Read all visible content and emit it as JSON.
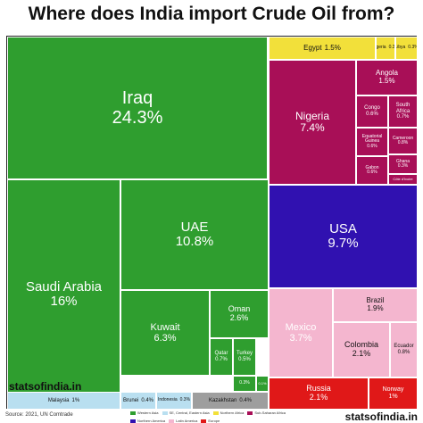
{
  "title": "Where does India import Crude Oil from?",
  "source": "Source: 2021, UN Comtrade",
  "brand": "statsofindia.in",
  "colors": {
    "Western Asia": "#2f9e2f",
    "Central Asia": "#9e9e9e",
    "Northern Africa": "#f2e03a",
    "Sub-Saharan Africa": "#a80f57",
    "Northern America": "#3011b0",
    "Latin America": "#f4b6cf",
    "Europe": "#e01818",
    "South-eastern Asia": "#b9dff0"
  },
  "legend": [
    {
      "name": "Western Asia",
      "color": "#2f9e2f"
    },
    {
      "name": "SE, Central, Eastern Asia",
      "color": "#b9dff0"
    },
    {
      "name": "Northern Africa",
      "color": "#f2e03a"
    },
    {
      "name": "Sub-Saharan Africa",
      "color": "#a80f57"
    },
    {
      "name": "Northern America",
      "color": "#3011b0"
    },
    {
      "name": "Latin America",
      "color": "#f4b6cf"
    },
    {
      "name": "Europe",
      "color": "#e01818"
    }
  ],
  "chart_data": {
    "type": "treemap",
    "title": "Where does India import Crude Oil from?",
    "unit": "%",
    "items": [
      {
        "name": "Iraq",
        "value": 24.3,
        "label": "24.3%",
        "region": "Western Asia"
      },
      {
        "name": "Saudi Arabia",
        "value": 16,
        "label": "16%",
        "region": "Western Asia"
      },
      {
        "name": "UAE",
        "value": 10.8,
        "label": "10.8%",
        "region": "Western Asia"
      },
      {
        "name": "Kuwait",
        "value": 6.3,
        "label": "6.3%",
        "region": "Western Asia"
      },
      {
        "name": "Oman",
        "value": 2.6,
        "label": "2.6%",
        "region": "Western Asia"
      },
      {
        "name": "Qatar",
        "value": 0.7,
        "label": "0.7%",
        "region": "Western Asia"
      },
      {
        "name": "Turkey",
        "value": 0.5,
        "label": "0.5%",
        "region": "Western Asia"
      },
      {
        "name": "",
        "value": 0.3,
        "label": "0.3%",
        "region": "Western Asia"
      },
      {
        "name": "",
        "value": 0.1,
        "label": "0.1%",
        "region": "Western Asia"
      },
      {
        "name": "Malaysia",
        "value": 1,
        "label": "1%",
        "region": "South-eastern Asia"
      },
      {
        "name": "Brunei",
        "value": 0.4,
        "label": "0.4%",
        "region": "South-eastern Asia"
      },
      {
        "name": "Indonesia",
        "value": 0.3,
        "label": "0.3%",
        "region": "South-eastern Asia"
      },
      {
        "name": "Kazakhstan",
        "value": 0.4,
        "label": "0.4%",
        "region": "Central Asia"
      },
      {
        "name": "Egypt",
        "value": 1.5,
        "label": "1.5%",
        "region": "Northern Africa"
      },
      {
        "name": "Algeria",
        "value": 0.3,
        "label": "0.3%",
        "region": "Northern Africa"
      },
      {
        "name": "Libya",
        "value": 0.3,
        "label": "0.3%",
        "region": "Northern Africa"
      },
      {
        "name": "Nigeria",
        "value": 7.4,
        "label": "7.4%",
        "region": "Sub-Saharan Africa"
      },
      {
        "name": "Angola",
        "value": 1.5,
        "label": "1.5%",
        "region": "Sub-Saharan Africa"
      },
      {
        "name": "Congo",
        "value": 0.6,
        "label": "0.6%",
        "region": "Sub-Saharan Africa"
      },
      {
        "name": "South Africa",
        "value": 0.7,
        "label": "0.7%",
        "region": "Sub-Saharan Africa"
      },
      {
        "name": "Equatorial Guinea",
        "value": 0.6,
        "label": "0.6%",
        "region": "Sub-Saharan Africa"
      },
      {
        "name": "Cameroon",
        "value": 0.8,
        "label": "0.8%",
        "region": "Sub-Saharan Africa"
      },
      {
        "name": "Gabon",
        "value": 0.6,
        "label": "0.6%",
        "region": "Sub-Saharan Africa"
      },
      {
        "name": "Ghana",
        "value": 0.3,
        "label": "0.3%",
        "region": "Sub-Saharan Africa"
      },
      {
        "name": "Côte d'Ivoire",
        "value": null,
        "label": "",
        "region": "Sub-Saharan Africa"
      },
      {
        "name": "USA",
        "value": 9.7,
        "label": "9.7%",
        "region": "Northern America"
      },
      {
        "name": "Mexico",
        "value": 3.7,
        "label": "3.7%",
        "region": "Latin America"
      },
      {
        "name": "Brazil",
        "value": 1.9,
        "label": "1.9%",
        "region": "Latin America"
      },
      {
        "name": "Colombia",
        "value": 2.1,
        "label": "2.1%",
        "region": "Latin America"
      },
      {
        "name": "Ecuador",
        "value": 0.8,
        "label": "0.8%",
        "region": "Latin America"
      },
      {
        "name": "Russia",
        "value": 2.1,
        "label": "2.1%",
        "region": "Europe"
      },
      {
        "name": "Norway",
        "value": 1,
        "label": "1%",
        "region": "Europe"
      }
    ]
  }
}
